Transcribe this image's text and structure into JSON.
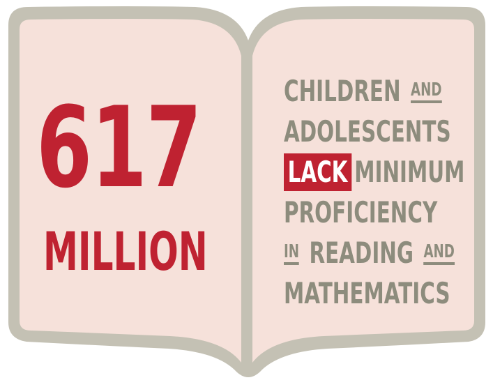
{
  "number": "617",
  "unit": "MILLION",
  "statement": {
    "line1": {
      "text": "CHILDREN",
      "connector": "AND"
    },
    "line2": {
      "text": "ADOLESCENTS"
    },
    "line3": {
      "highlight": "LACK",
      "text": "MINIMUM"
    },
    "line4": {
      "text": "PROFICIENCY"
    },
    "line5": {
      "prefix": "IN",
      "text": "READING",
      "connector": "AND"
    },
    "line6": {
      "text": "MATHEMATICS"
    }
  },
  "colors": {
    "accent_red": "#bf2231",
    "text_gray": "#8d8c7d",
    "page_fill": "#f6e1da",
    "book_border": "#c4c1b4"
  },
  "icons": {
    "book": "open-book-icon"
  }
}
